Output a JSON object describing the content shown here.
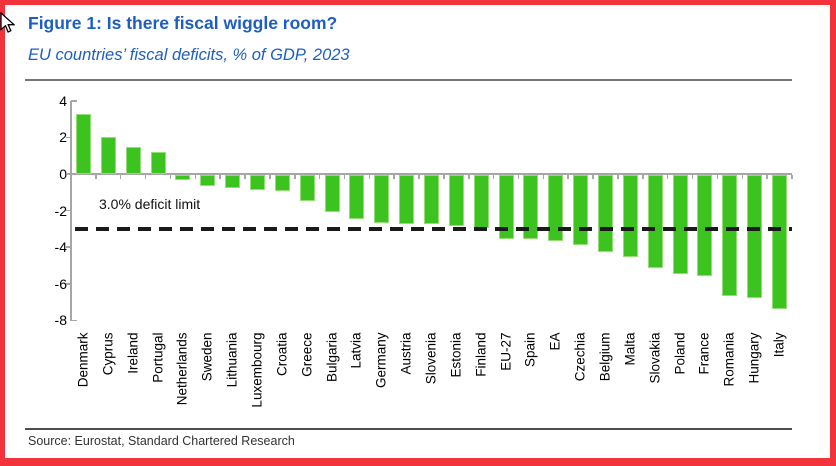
{
  "figure": {
    "title": "Figure 1: Is there fiscal wiggle room?",
    "subtitle": "EU countries’ fiscal deficits, % of GDP, 2023",
    "source": "Source: Eurostat, Standard Chartered Research"
  },
  "annotation": {
    "deficit_limit_label": "3.0% deficit limit"
  },
  "colors": {
    "bar_fill": "#3CC31F",
    "bar_edge": "#94DE75",
    "title_blue": "#1D5EC2",
    "dashed_line": "#1a1a1a",
    "axis_gray": "#A6A6A6",
    "frame_red": "#F3333B"
  },
  "chart_data": {
    "type": "bar",
    "title": "EU countries’ fiscal deficits, % of GDP, 2023",
    "xlabel": "",
    "ylabel": "% of GDP",
    "ylim": [
      -8,
      4
    ],
    "yticks": [
      4,
      2,
      0,
      -2,
      -4,
      -6,
      -8
    ],
    "grid": false,
    "legend": "none",
    "categories": [
      "Denmark",
      "Cyprus",
      "Ireland",
      "Portugal",
      "Netherlands",
      "Sweden",
      "Lithuania",
      "Luxembourg",
      "Croatia",
      "Greece",
      "Bulgaria",
      "Latvia",
      "Germany",
      "Austria",
      "Slovenia",
      "Estonia",
      "Finland",
      "EU-27",
      "Spain",
      "EA",
      "Czechia",
      "Belgium",
      "Malta",
      "Slovakia",
      "Poland",
      "France",
      "Romania",
      "Hungary",
      "Italy"
    ],
    "values": [
      3.3,
      2.0,
      1.5,
      1.2,
      -0.3,
      -0.6,
      -0.7,
      -0.8,
      -0.9,
      -1.4,
      -2.0,
      -2.4,
      -2.6,
      -2.7,
      -2.7,
      -2.8,
      -2.9,
      -3.5,
      -3.5,
      -3.6,
      -3.8,
      -4.2,
      -4.5,
      -5.1,
      -5.4,
      -5.5,
      -6.6,
      -6.7,
      -7.3
    ],
    "reference_line": {
      "value": -3.0,
      "label": "3.0% deficit limit",
      "style": "dashed",
      "color": "#1a1a1a"
    }
  }
}
